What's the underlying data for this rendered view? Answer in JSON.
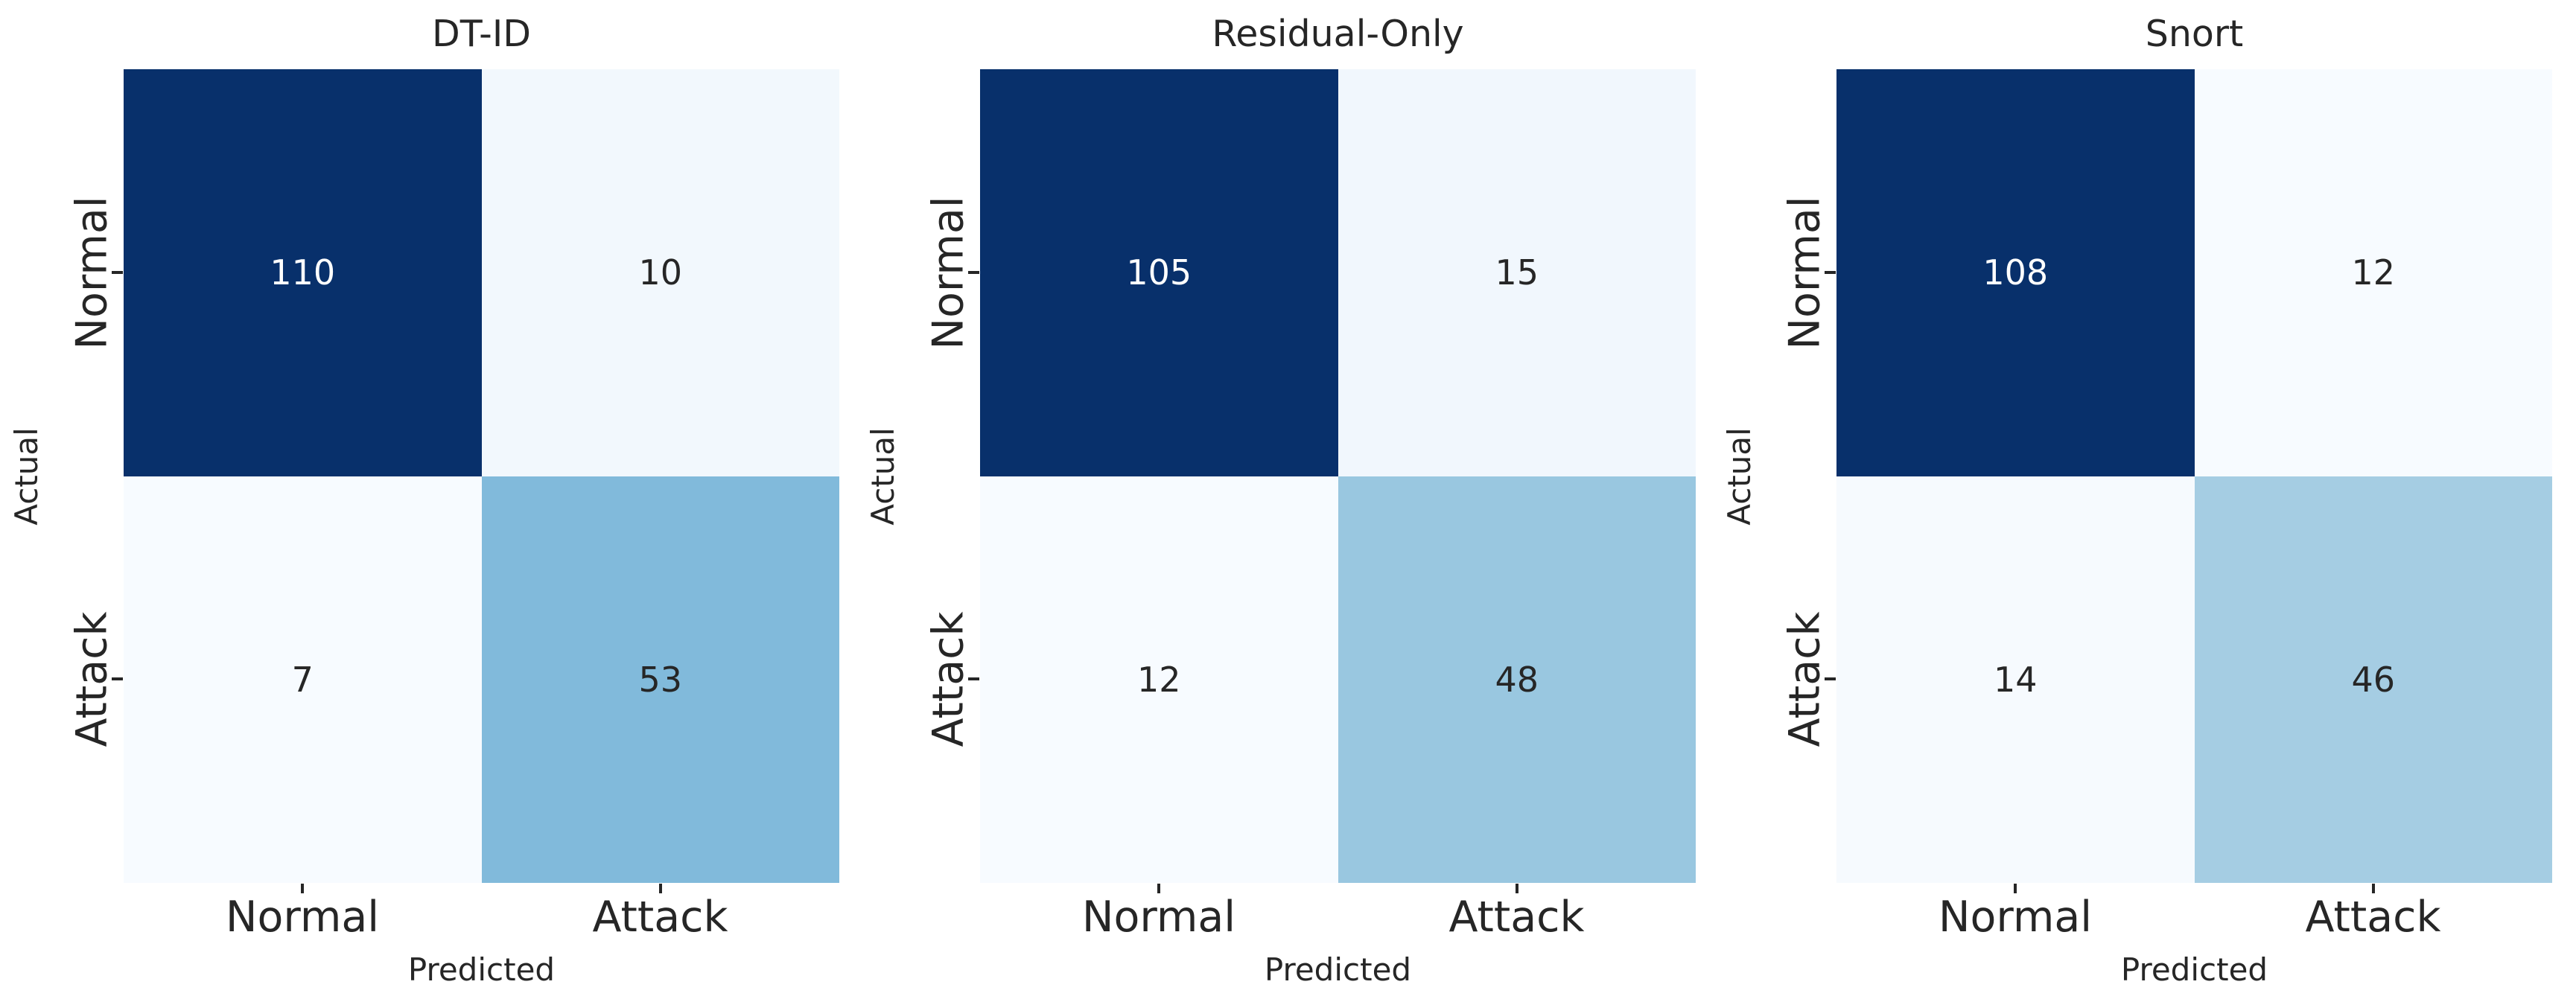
{
  "figure": {
    "background": "#ffffff",
    "text_color": "#262626",
    "colormap": "Blues",
    "max_cell_color": "#08306b",
    "min_cell_color": "#f7fbff"
  },
  "chart_data": [
    {
      "type": "heatmap",
      "title": "DT-ID",
      "xlabel": "Predicted",
      "ylabel": "Actual",
      "x_categories": [
        "Normal",
        "Attack"
      ],
      "y_categories": [
        "Normal",
        "Attack"
      ],
      "values": [
        [
          110,
          10
        ],
        [
          7,
          53
        ]
      ],
      "cell_styles": [
        [
          {
            "bg": "#08306b",
            "fg": "#ffffff"
          },
          {
            "bg": "#f2f8fd",
            "fg": "#262626"
          }
        ],
        [
          {
            "bg": "#f7fbff",
            "fg": "#262626"
          },
          {
            "bg": "#81badb",
            "fg": "#262626"
          }
        ]
      ]
    },
    {
      "type": "heatmap",
      "title": "Residual-Only",
      "xlabel": "Predicted",
      "ylabel": "Actual",
      "x_categories": [
        "Normal",
        "Attack"
      ],
      "y_categories": [
        "Normal",
        "Attack"
      ],
      "values": [
        [
          105,
          15
        ],
        [
          12,
          48
        ]
      ],
      "cell_styles": [
        [
          {
            "bg": "#08306b",
            "fg": "#ffffff"
          },
          {
            "bg": "#f1f7fd",
            "fg": "#262626"
          }
        ],
        [
          {
            "bg": "#f7fbff",
            "fg": "#262626"
          },
          {
            "bg": "#99c7e0",
            "fg": "#262626"
          }
        ]
      ]
    },
    {
      "type": "heatmap",
      "title": "Snort",
      "xlabel": "Predicted",
      "ylabel": "Actual",
      "x_categories": [
        "Normal",
        "Attack"
      ],
      "y_categories": [
        "Normal",
        "Attack"
      ],
      "values": [
        [
          108,
          12
        ],
        [
          14,
          46
        ]
      ],
      "cell_styles": [
        [
          {
            "bg": "#08306b",
            "fg": "#ffffff"
          },
          {
            "bg": "#f7fbff",
            "fg": "#262626"
          }
        ],
        [
          {
            "bg": "#f6fafe",
            "fg": "#262626"
          },
          {
            "bg": "#a5cde3",
            "fg": "#262626"
          }
        ]
      ]
    }
  ]
}
